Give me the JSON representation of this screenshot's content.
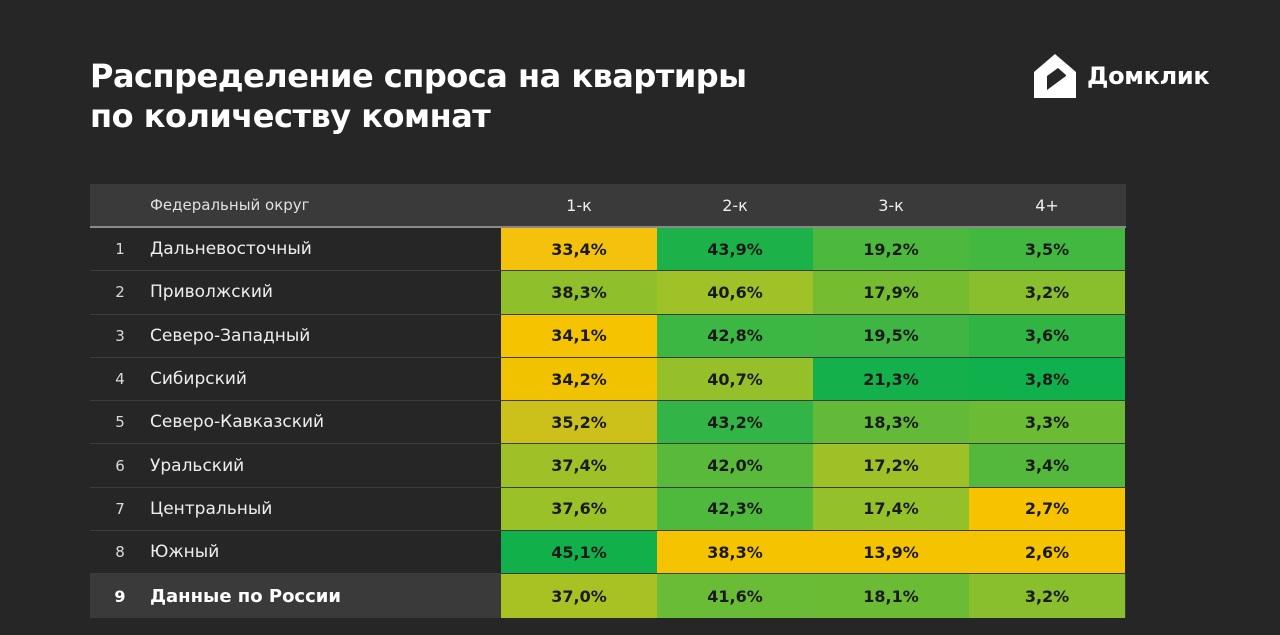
{
  "header": {
    "title_line1": "Распределение спроса на квартиры",
    "title_line2": "по количеству комнат",
    "brand": "Домклик",
    "brand_icon": "domclick-logo-icon"
  },
  "colors": {
    "background": "#262626",
    "header_row": "#3a3a3a",
    "scale_low": "#f5c000",
    "scale_mid": "#8fbf2a",
    "scale_high": "#11b04a"
  },
  "chart_data": {
    "type": "heatmap",
    "row_header": "Федеральный округ",
    "columns": [
      "1-к",
      "2-к",
      "3-к",
      "4+"
    ],
    "rows": [
      {
        "num": "1",
        "name": "Дальневосточный",
        "cells": [
          {
            "text": "33,4%",
            "value": 33.4,
            "color": "#f4c20c"
          },
          {
            "text": "43,9%",
            "value": 43.9,
            "color": "#1db14a"
          },
          {
            "text": "19,2%",
            "value": 19.2,
            "color": "#4db83e"
          },
          {
            "text": "3,5%",
            "value": 3.5,
            "color": "#43b841"
          }
        ]
      },
      {
        "num": "2",
        "name": "Приволжский",
        "cells": [
          {
            "text": "38,3%",
            "value": 38.3,
            "color": "#8fbf2a"
          },
          {
            "text": "40,6%",
            "value": 40.6,
            "color": "#9ec228"
          },
          {
            "text": "17,9%",
            "value": 17.9,
            "color": "#76bc30"
          },
          {
            "text": "3,2%",
            "value": 3.2,
            "color": "#89bf2c"
          }
        ]
      },
      {
        "num": "3",
        "name": "Северо-Западный",
        "cells": [
          {
            "text": "34,1%",
            "value": 34.1,
            "color": "#f5c300"
          },
          {
            "text": "42,8%",
            "value": 42.8,
            "color": "#3db744"
          },
          {
            "text": "19,5%",
            "value": 19.5,
            "color": "#3fb643"
          },
          {
            "text": "3,6%",
            "value": 3.6,
            "color": "#30b545"
          }
        ]
      },
      {
        "num": "4",
        "name": "Сибирский",
        "cells": [
          {
            "text": "34,2%",
            "value": 34.2,
            "color": "#f0c200"
          },
          {
            "text": "40,7%",
            "value": 40.7,
            "color": "#96c02a"
          },
          {
            "text": "21,3%",
            "value": 21.3,
            "color": "#13b04b"
          },
          {
            "text": "3,8%",
            "value": 3.8,
            "color": "#10b04c"
          }
        ]
      },
      {
        "num": "5",
        "name": "Северо-Кавказский",
        "cells": [
          {
            "text": "35,2%",
            "value": 35.2,
            "color": "#ccc11a"
          },
          {
            "text": "43,2%",
            "value": 43.2,
            "color": "#33b446"
          },
          {
            "text": "18,3%",
            "value": 18.3,
            "color": "#62ba38"
          },
          {
            "text": "3,3%",
            "value": 3.3,
            "color": "#6bbb34"
          }
        ]
      },
      {
        "num": "6",
        "name": "Уральский",
        "cells": [
          {
            "text": "37,4%",
            "value": 37.4,
            "color": "#9dc127"
          },
          {
            "text": "42,0%",
            "value": 42.0,
            "color": "#58b93b"
          },
          {
            "text": "17,2%",
            "value": 17.2,
            "color": "#9dc127"
          },
          {
            "text": "3,4%",
            "value": 3.4,
            "color": "#54b83c"
          }
        ]
      },
      {
        "num": "7",
        "name": "Центральный",
        "cells": [
          {
            "text": "37,6%",
            "value": 37.6,
            "color": "#9ac128"
          },
          {
            "text": "42,3%",
            "value": 42.3,
            "color": "#4fb93d"
          },
          {
            "text": "17,4%",
            "value": 17.4,
            "color": "#94c02a"
          },
          {
            "text": "2,7%",
            "value": 2.7,
            "color": "#f7c300"
          }
        ]
      },
      {
        "num": "8",
        "name": "Южный",
        "cells": [
          {
            "text": "45,1%",
            "value": 45.1,
            "color": "#11b04b"
          },
          {
            "text": "38,3%",
            "value": 38.3,
            "color": "#f6c300"
          },
          {
            "text": "13,9%",
            "value": 13.9,
            "color": "#f6c300"
          },
          {
            "text": "2,6%",
            "value": 2.6,
            "color": "#f6c300"
          }
        ]
      },
      {
        "num": "9",
        "name": "Данные по России",
        "total": true,
        "cells": [
          {
            "text": "37,0%",
            "value": 37.0,
            "color": "#a8c224"
          },
          {
            "text": "41,6%",
            "value": 41.6,
            "color": "#6abb35"
          },
          {
            "text": "18,1%",
            "value": 18.1,
            "color": "#6bbb34"
          },
          {
            "text": "3,2%",
            "value": 3.2,
            "color": "#89bf2c"
          }
        ]
      }
    ]
  }
}
